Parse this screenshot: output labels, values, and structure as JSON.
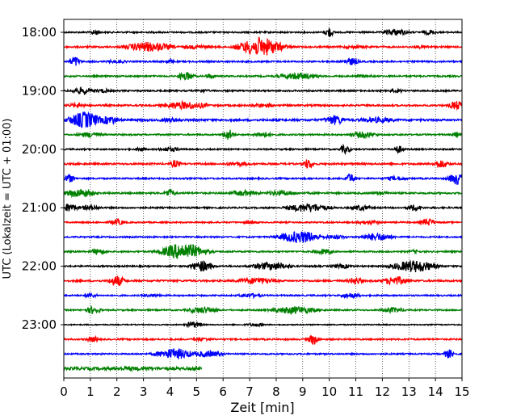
{
  "chart_data": {
    "type": "line",
    "xlabel": "Zeit  [min]",
    "ylabel": "UTC (Lokalzeit = UTC + 01:00)",
    "xlim": [
      0,
      15
    ],
    "x_ticks": [
      0,
      1,
      2,
      3,
      4,
      5,
      6,
      7,
      8,
      9,
      10,
      11,
      12,
      13,
      14,
      15
    ],
    "y_tick_labels": [
      "18:00",
      "19:00",
      "20:00",
      "21:00",
      "22:00",
      "23:00"
    ],
    "y_tick_rows": [
      0,
      4,
      8,
      12,
      16,
      20
    ],
    "grid_x": true,
    "line_colors": [
      "#000000",
      "#ff0000",
      "#0000ff",
      "#008000"
    ],
    "rows": [
      {
        "start": "18:00",
        "color": "#000000",
        "end_min": 15,
        "noise": 0.13,
        "bursts": [
          {
            "t": 1.2,
            "a": 0.5,
            "w": 0.2
          },
          {
            "t": 10.0,
            "a": 1.0,
            "w": 0.15
          },
          {
            "t": 12.5,
            "a": 0.6,
            "w": 0.5
          },
          {
            "t": 13.8,
            "a": 0.45,
            "w": 0.3
          }
        ]
      },
      {
        "start": "18:15",
        "color": "#ff0000",
        "end_min": 15,
        "noise": 0.15,
        "bursts": [
          {
            "t": 3.2,
            "a": 0.9,
            "w": 0.9
          },
          {
            "t": 7.4,
            "a": 1.7,
            "w": 0.8
          },
          {
            "t": 5.0,
            "a": 0.35,
            "w": 0.7
          },
          {
            "t": 11.0,
            "a": 0.3,
            "w": 0.7
          },
          {
            "t": 13.5,
            "a": 0.3,
            "w": 0.5
          }
        ]
      },
      {
        "start": "18:30",
        "color": "#0000ff",
        "end_min": 15,
        "noise": 0.13,
        "bursts": [
          {
            "t": 0.4,
            "a": 1.0,
            "w": 0.2
          },
          {
            "t": 4.0,
            "a": 0.4,
            "w": 0.2
          },
          {
            "t": 10.8,
            "a": 0.7,
            "w": 0.3
          },
          {
            "t": 2.0,
            "a": 0.3,
            "w": 0.5
          }
        ]
      },
      {
        "start": "18:45",
        "color": "#008000",
        "end_min": 15,
        "noise": 0.13,
        "bursts": [
          {
            "t": 4.6,
            "a": 0.8,
            "w": 0.3
          },
          {
            "t": 5.5,
            "a": 0.5,
            "w": 0.2
          },
          {
            "t": 8.8,
            "a": 0.6,
            "w": 0.8
          },
          {
            "t": 11.3,
            "a": 0.3,
            "w": 0.5
          }
        ]
      },
      {
        "start": "19:00",
        "color": "#000000",
        "end_min": 15,
        "noise": 0.13,
        "bursts": [
          {
            "t": 0.7,
            "a": 0.6,
            "w": 0.5
          },
          {
            "t": 1.5,
            "a": 0.4,
            "w": 0.3
          },
          {
            "t": 5.2,
            "a": 0.35,
            "w": 0.3
          },
          {
            "t": 12.5,
            "a": 0.3,
            "w": 0.4
          }
        ]
      },
      {
        "start": "19:15",
        "color": "#ff0000",
        "end_min": 15,
        "noise": 0.15,
        "bursts": [
          {
            "t": 0.5,
            "a": 0.4,
            "w": 0.4
          },
          {
            "t": 4.5,
            "a": 0.7,
            "w": 0.8
          },
          {
            "t": 5.2,
            "a": 0.5,
            "w": 0.3
          },
          {
            "t": 7.5,
            "a": 0.4,
            "w": 0.5
          },
          {
            "t": 14.8,
            "a": 0.8,
            "w": 0.3
          }
        ]
      },
      {
        "start": "19:30",
        "color": "#0000ff",
        "end_min": 15,
        "noise": 0.18,
        "bursts": [
          {
            "t": 0.8,
            "a": 1.5,
            "w": 0.6
          },
          {
            "t": 1.7,
            "a": 0.8,
            "w": 0.4
          },
          {
            "t": 4.0,
            "a": 0.4,
            "w": 0.5
          },
          {
            "t": 10.2,
            "a": 0.9,
            "w": 0.4
          },
          {
            "t": 11.8,
            "a": 0.5,
            "w": 0.8
          }
        ]
      },
      {
        "start": "19:45",
        "color": "#008000",
        "end_min": 15,
        "noise": 0.13,
        "bursts": [
          {
            "t": 1.0,
            "a": 0.5,
            "w": 0.5
          },
          {
            "t": 6.2,
            "a": 1.0,
            "w": 0.2
          },
          {
            "t": 7.5,
            "a": 0.5,
            "w": 0.4
          },
          {
            "t": 11.3,
            "a": 0.6,
            "w": 0.5
          },
          {
            "t": 14.8,
            "a": 0.5,
            "w": 0.2
          }
        ]
      },
      {
        "start": "20:00",
        "color": "#000000",
        "end_min": 15,
        "noise": 0.12,
        "bursts": [
          {
            "t": 2.9,
            "a": 0.4,
            "w": 0.2
          },
          {
            "t": 4.0,
            "a": 0.4,
            "w": 0.5
          },
          {
            "t": 10.6,
            "a": 0.8,
            "w": 0.2
          },
          {
            "t": 12.6,
            "a": 0.7,
            "w": 0.2
          }
        ]
      },
      {
        "start": "20:15",
        "color": "#ff0000",
        "end_min": 15,
        "noise": 0.15,
        "bursts": [
          {
            "t": 4.2,
            "a": 0.7,
            "w": 0.2
          },
          {
            "t": 9.2,
            "a": 0.9,
            "w": 0.2
          },
          {
            "t": 6.5,
            "a": 0.4,
            "w": 0.6
          },
          {
            "t": 14.2,
            "a": 0.8,
            "w": 0.3
          }
        ]
      },
      {
        "start": "20:30",
        "color": "#0000ff",
        "end_min": 15,
        "noise": 0.13,
        "bursts": [
          {
            "t": 0.2,
            "a": 0.8,
            "w": 0.2
          },
          {
            "t": 10.8,
            "a": 0.9,
            "w": 0.2
          },
          {
            "t": 12.5,
            "a": 0.4,
            "w": 0.5
          },
          {
            "t": 14.8,
            "a": 1.1,
            "w": 0.3
          }
        ]
      },
      {
        "start": "20:45",
        "color": "#008000",
        "end_min": 15,
        "noise": 0.15,
        "bursts": [
          {
            "t": 0.6,
            "a": 0.8,
            "w": 0.6
          },
          {
            "t": 4.0,
            "a": 0.8,
            "w": 0.2
          },
          {
            "t": 6.8,
            "a": 0.5,
            "w": 0.6
          },
          {
            "t": 8.2,
            "a": 0.5,
            "w": 0.6
          },
          {
            "t": 12.0,
            "a": 0.3,
            "w": 0.5
          }
        ]
      },
      {
        "start": "21:00",
        "color": "#000000",
        "end_min": 15,
        "noise": 0.13,
        "bursts": [
          {
            "t": 0.2,
            "a": 0.8,
            "w": 0.3
          },
          {
            "t": 1.0,
            "a": 0.5,
            "w": 0.4
          },
          {
            "t": 9.2,
            "a": 0.8,
            "w": 0.8
          },
          {
            "t": 11.2,
            "a": 0.5,
            "w": 0.4
          },
          {
            "t": 13.2,
            "a": 0.6,
            "w": 0.3
          }
        ]
      },
      {
        "start": "21:15",
        "color": "#ff0000",
        "end_min": 15,
        "noise": 0.12,
        "bursts": [
          {
            "t": 2.0,
            "a": 0.6,
            "w": 0.3
          },
          {
            "t": 7.0,
            "a": 0.3,
            "w": 0.4
          },
          {
            "t": 11.5,
            "a": 0.4,
            "w": 0.5
          },
          {
            "t": 13.7,
            "a": 0.7,
            "w": 0.3
          }
        ]
      },
      {
        "start": "21:30",
        "color": "#0000ff",
        "end_min": 15,
        "noise": 0.12,
        "bursts": [
          {
            "t": 8.9,
            "a": 1.1,
            "w": 0.8
          },
          {
            "t": 11.8,
            "a": 0.7,
            "w": 0.6
          },
          {
            "t": 10.2,
            "a": 0.4,
            "w": 0.5
          }
        ]
      },
      {
        "start": "21:45",
        "color": "#008000",
        "end_min": 15,
        "noise": 0.13,
        "bursts": [
          {
            "t": 1.3,
            "a": 0.6,
            "w": 0.3
          },
          {
            "t": 4.5,
            "a": 1.5,
            "w": 0.8
          },
          {
            "t": 9.8,
            "a": 0.5,
            "w": 0.4
          },
          {
            "t": 13.2,
            "a": 0.3,
            "w": 0.3
          }
        ]
      },
      {
        "start": "22:00",
        "color": "#000000",
        "end_min": 15,
        "noise": 0.13,
        "bursts": [
          {
            "t": 5.2,
            "a": 1.0,
            "w": 0.4
          },
          {
            "t": 7.8,
            "a": 0.7,
            "w": 0.8
          },
          {
            "t": 13.2,
            "a": 1.1,
            "w": 0.8
          },
          {
            "t": 10.5,
            "a": 0.4,
            "w": 0.5
          }
        ]
      },
      {
        "start": "22:15",
        "color": "#ff0000",
        "end_min": 15,
        "noise": 0.15,
        "bursts": [
          {
            "t": 2.0,
            "a": 1.0,
            "w": 0.3
          },
          {
            "t": 7.3,
            "a": 0.6,
            "w": 0.8
          },
          {
            "t": 11.0,
            "a": 0.7,
            "w": 0.3
          },
          {
            "t": 12.5,
            "a": 0.8,
            "w": 0.5
          }
        ]
      },
      {
        "start": "22:30",
        "color": "#0000ff",
        "end_min": 15,
        "noise": 0.12,
        "bursts": [
          {
            "t": 1.0,
            "a": 0.4,
            "w": 0.3
          },
          {
            "t": 3.3,
            "a": 0.3,
            "w": 0.5
          },
          {
            "t": 7.0,
            "a": 0.4,
            "w": 0.5
          },
          {
            "t": 10.8,
            "a": 0.5,
            "w": 0.4
          }
        ]
      },
      {
        "start": "22:45",
        "color": "#008000",
        "end_min": 15,
        "noise": 0.12,
        "bursts": [
          {
            "t": 1.1,
            "a": 0.7,
            "w": 0.3
          },
          {
            "t": 5.2,
            "a": 0.6,
            "w": 0.6
          },
          {
            "t": 8.7,
            "a": 0.7,
            "w": 0.9
          },
          {
            "t": 12.4,
            "a": 0.5,
            "w": 0.5
          }
        ]
      },
      {
        "start": "23:00",
        "color": "#000000",
        "end_min": 15,
        "noise": 0.09,
        "bursts": [
          {
            "t": 4.9,
            "a": 0.6,
            "w": 0.3
          },
          {
            "t": 7.2,
            "a": 0.3,
            "w": 0.4
          }
        ]
      },
      {
        "start": "23:15",
        "color": "#ff0000",
        "end_min": 15,
        "noise": 0.13,
        "bursts": [
          {
            "t": 1.1,
            "a": 0.5,
            "w": 0.3
          },
          {
            "t": 9.4,
            "a": 1.0,
            "w": 0.2
          },
          {
            "t": 5.2,
            "a": 0.3,
            "w": 0.5
          }
        ]
      },
      {
        "start": "23:30",
        "color": "#0000ff",
        "end_min": 15,
        "noise": 0.12,
        "bursts": [
          {
            "t": 4.2,
            "a": 1.0,
            "w": 0.7
          },
          {
            "t": 5.4,
            "a": 0.6,
            "w": 0.6
          },
          {
            "t": 14.5,
            "a": 0.8,
            "w": 0.2
          }
        ]
      },
      {
        "start": "23:45",
        "color": "#008000",
        "end_min": 5.2,
        "noise": 0.25,
        "bursts": [
          {
            "t": 2.5,
            "a": 0.35,
            "w": 1.5
          }
        ]
      }
    ]
  }
}
